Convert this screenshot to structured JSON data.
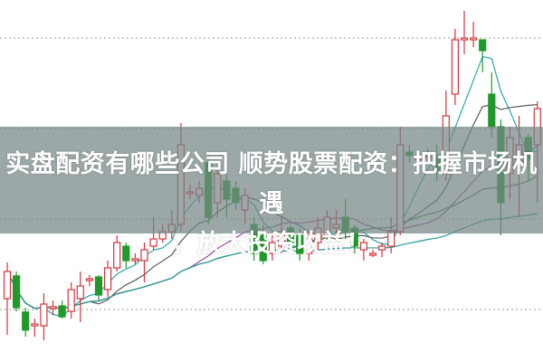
{
  "title_line1": "实盘配资有哪些公司 顺势股票配资：把握市场机遇",
  "title_line2": "，放大投资收益！",
  "chart_data": {
    "type": "candlestick",
    "up_color": "#d2353d",
    "down_color": "#1f9a2a",
    "grid": "dotted-horizontal",
    "ma_colors": [
      "#2aa7a8",
      "#5a5a5a",
      "#a04aa0",
      "#3a7a3a",
      "#2a9a9a"
    ],
    "candles": [
      [
        17.5,
        27.5,
        7.5,
        25
      ],
      [
        23.8,
        25,
        14,
        15
      ],
      [
        13.8,
        15,
        7,
        8.8
      ],
      [
        10.5,
        12,
        7,
        10.5
      ],
      [
        10,
        19,
        6,
        16
      ],
      [
        15,
        17,
        13,
        15.3
      ],
      [
        15.5,
        17,
        12,
        12.5
      ],
      [
        14,
        22,
        12,
        20
      ],
      [
        17.5,
        25,
        11,
        21
      ],
      [
        23,
        24,
        21,
        23
      ],
      [
        23.5,
        24,
        17,
        18.5
      ],
      [
        20,
        28,
        18,
        26
      ],
      [
        26,
        35,
        25,
        33
      ],
      [
        32,
        33,
        26,
        28
      ],
      [
        28.5,
        30,
        27,
        28.5
      ],
      [
        28,
        33,
        22,
        31
      ],
      [
        32,
        40,
        31,
        34
      ],
      [
        34,
        38,
        33,
        36
      ],
      [
        36,
        42,
        34,
        38
      ],
      [
        38,
        66,
        36,
        60
      ],
      [
        47,
        49,
        45,
        47
      ],
      [
        46,
        50,
        44,
        48
      ],
      [
        55,
        57,
        38,
        40
      ],
      [
        44,
        55,
        40,
        52
      ],
      [
        50,
        52,
        40,
        45
      ],
      [
        48,
        50,
        42,
        44
      ],
      [
        42,
        48,
        38,
        46
      ],
      [
        38,
        40,
        28,
        30
      ],
      [
        35,
        38,
        27,
        28
      ],
      [
        30,
        35,
        28,
        33
      ],
      [
        32,
        40,
        30,
        36
      ],
      [
        37,
        38,
        31,
        33
      ],
      [
        35,
        37,
        28,
        30
      ],
      [
        30,
        36,
        28,
        34
      ],
      [
        33,
        40,
        31,
        37
      ],
      [
        35,
        42,
        33,
        40
      ],
      [
        37,
        42,
        35,
        38
      ],
      [
        40,
        45,
        34,
        36
      ],
      [
        37,
        38,
        30,
        32
      ],
      [
        31,
        34,
        28,
        33
      ],
      [
        30,
        31,
        29,
        30
      ],
      [
        31,
        33,
        29,
        32
      ],
      [
        32,
        40,
        30,
        36
      ],
      [
        36,
        65,
        35,
        60
      ],
      [
        58,
        60,
        55,
        57
      ],
      [
        56.5,
        58,
        55,
        56.5
      ],
      [
        57,
        59,
        55,
        57
      ],
      [
        56,
        60,
        50,
        53
      ],
      [
        52,
        75,
        50,
        68
      ],
      [
        74,
        92,
        71,
        89
      ],
      [
        89.5,
        97,
        85,
        89.5
      ],
      [
        89.5,
        94,
        87,
        89.5
      ],
      [
        89,
        89,
        80,
        86
      ],
      [
        74,
        80,
        62,
        65
      ],
      [
        65,
        67,
        35,
        44
      ],
      [
        52,
        65,
        45,
        62
      ],
      [
        55,
        68,
        40,
        60
      ],
      [
        62,
        63,
        50,
        56
      ],
      [
        60,
        72,
        44,
        70
      ]
    ]
  }
}
